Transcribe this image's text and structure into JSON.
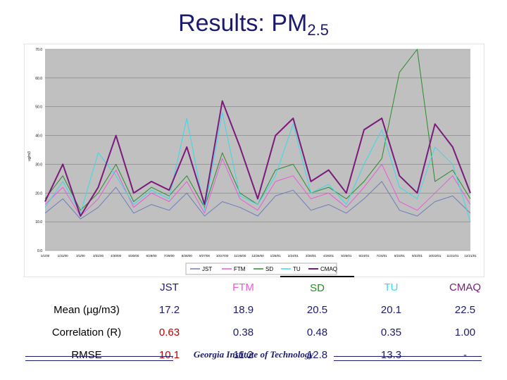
{
  "slide": {
    "title": "Results: PM",
    "title_sub": "2.5",
    "footer": "Georgia Institute of Technology"
  },
  "chart_data": {
    "type": "line",
    "title": "",
    "xlabel": "",
    "ylabel": "ug/m3",
    "ylim": [
      0,
      70
    ],
    "yticks": [
      "0.0",
      "10.0",
      "20.0",
      "30.0",
      "40.0",
      "50.0",
      "60.0",
      "70.0"
    ],
    "xticks": [
      "1/1/00",
      "1/31/00",
      "3/1/00",
      "3/31/00",
      "4/30/00",
      "5/30/00",
      "6/29/00",
      "7/29/00",
      "8/28/00",
      "9/27/00",
      "10/27/00",
      "11/26/00",
      "12/26/00",
      "1/25/01",
      "2/24/01",
      "3/26/01",
      "4/25/01",
      "5/25/01",
      "6/24/01",
      "7/24/01",
      "8/23/01",
      "9/22/01",
      "10/22/01",
      "11/21/01",
      "12/21/01"
    ],
    "grid": "horizontal",
    "legend": "bottom",
    "series": [
      {
        "name": "JST",
        "color": "#6e7cb8",
        "width": 1.0,
        "values": [
          13,
          18,
          11,
          15,
          22,
          13,
          16,
          14,
          20,
          12,
          17,
          15,
          12,
          19,
          21,
          14,
          16,
          13,
          18,
          24,
          14,
          12,
          17,
          19,
          13
        ]
      },
      {
        "name": "FTM",
        "color": "#e85ad8",
        "width": 1.0,
        "values": [
          16,
          22,
          12,
          18,
          28,
          15,
          20,
          17,
          24,
          13,
          32,
          18,
          14,
          24,
          26,
          18,
          20,
          15,
          22,
          30,
          17,
          14,
          20,
          26,
          16
        ]
      },
      {
        "name": "SD",
        "color": "#2a8a2a",
        "width": 1.0,
        "values": [
          18,
          26,
          14,
          20,
          30,
          17,
          22,
          19,
          26,
          15,
          34,
          20,
          16,
          28,
          30,
          20,
          22,
          18,
          24,
          32,
          62,
          70,
          24,
          28,
          18
        ]
      },
      {
        "name": "TU",
        "color": "#3ad8e8",
        "width": 1.0,
        "values": [
          15,
          24,
          13,
          34,
          26,
          16,
          21,
          18,
          46,
          14,
          48,
          19,
          16,
          26,
          44,
          20,
          23,
          16,
          30,
          42,
          22,
          18,
          36,
          30,
          10
        ]
      },
      {
        "name": "CMAQ",
        "color": "#7a1a7a",
        "width": 2.0,
        "values": [
          17,
          30,
          12,
          22,
          40,
          20,
          24,
          21,
          36,
          16,
          52,
          36,
          18,
          40,
          46,
          24,
          28,
          20,
          42,
          46,
          26,
          20,
          44,
          36,
          20
        ]
      }
    ]
  },
  "table": {
    "headers": [
      "",
      "JST",
      "FTM",
      "SD",
      "TU",
      "CMAQ"
    ],
    "header_colors": [
      "#000000",
      "#1a1a6e",
      "#e85ad8",
      "#2a8a2a",
      "#3ad8e8",
      "#7a1a7a"
    ],
    "rows": [
      {
        "label": "Mean (µg/m3)",
        "values": [
          "17.2",
          "18.9",
          "20.5",
          "20.1",
          "22.5"
        ],
        "colors": [
          "#1a1a6e",
          "#1a1a6e",
          "#1a1a6e",
          "#1a1a6e",
          "#1a1a6e"
        ]
      },
      {
        "label": "Correlation (R)",
        "values": [
          "0.63",
          "0.38",
          "0.48",
          "0.35",
          "1.00"
        ],
        "colors": [
          "#c00000",
          "#1a1a6e",
          "#1a1a6e",
          "#1a1a6e",
          "#1a1a6e"
        ]
      },
      {
        "label": "RMSE",
        "values": [
          "10.1",
          "11.2",
          "12.8",
          "13.3",
          "-"
        ],
        "colors": [
          "#c00000",
          "#1a1a6e",
          "#1a1a6e",
          "#1a1a6e",
          "#1a1a6e"
        ]
      }
    ]
  }
}
